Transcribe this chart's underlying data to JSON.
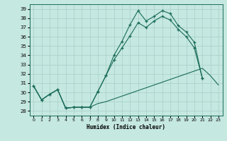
{
  "xlabel": "Humidex (Indice chaleur)",
  "xlim": [
    -0.5,
    23.5
  ],
  "ylim": [
    27.5,
    39.5
  ],
  "yticks": [
    28,
    29,
    30,
    31,
    32,
    33,
    34,
    35,
    36,
    37,
    38,
    39
  ],
  "xticks": [
    0,
    1,
    2,
    3,
    4,
    5,
    6,
    7,
    8,
    9,
    10,
    11,
    12,
    13,
    14,
    15,
    16,
    17,
    18,
    19,
    20,
    21,
    22,
    23
  ],
  "bg_color": "#c5e8e0",
  "line_color": "#1a6b5a",
  "grid_color": "#a8cfc8",
  "line1_x": [
    0,
    1,
    2,
    3,
    4,
    5,
    6,
    7,
    8,
    9,
    10,
    11,
    12,
    13,
    14,
    15,
    16,
    17,
    18,
    19,
    20,
    21
  ],
  "line1_y": [
    30.7,
    29.2,
    29.8,
    30.3,
    28.3,
    28.4,
    28.4,
    28.4,
    30.1,
    31.8,
    34.0,
    35.5,
    37.3,
    38.8,
    37.7,
    38.2,
    38.8,
    38.5,
    37.2,
    36.5,
    35.4,
    31.5
  ],
  "line2_x": [
    0,
    1,
    2,
    3,
    4,
    5,
    6,
    7,
    8,
    9,
    10,
    11,
    12,
    13,
    14,
    15,
    16,
    17,
    18,
    19,
    20,
    21
  ],
  "line2_y": [
    30.7,
    29.2,
    29.8,
    30.3,
    28.3,
    28.4,
    28.4,
    28.4,
    30.1,
    31.8,
    33.5,
    34.8,
    36.1,
    37.5,
    37.0,
    37.7,
    38.2,
    37.8,
    36.8,
    36.0,
    34.8,
    31.5
  ],
  "line3_x": [
    0,
    1,
    2,
    3,
    4,
    5,
    6,
    7,
    8,
    9,
    10,
    11,
    12,
    13,
    14,
    15,
    16,
    17,
    18,
    19,
    20,
    21,
    22,
    23
  ],
  "line3_y": [
    30.7,
    29.2,
    29.8,
    30.3,
    28.3,
    28.4,
    28.4,
    28.4,
    28.8,
    29.0,
    29.3,
    29.6,
    29.9,
    30.2,
    30.5,
    30.8,
    31.1,
    31.4,
    31.7,
    32.0,
    32.3,
    32.6,
    31.8,
    30.8
  ]
}
